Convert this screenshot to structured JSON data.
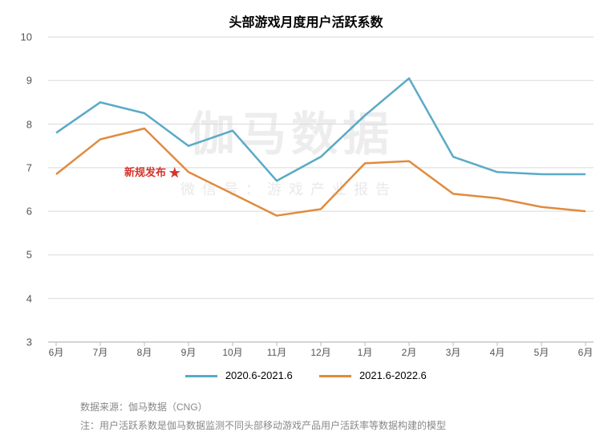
{
  "title": "头部游戏月度用户活跃系数",
  "chart": {
    "type": "line",
    "background_color": "#ffffff",
    "grid_color": "#d9d9d9",
    "axis_color": "#d9d9d9",
    "yaxis": {
      "min": 3,
      "max": 10,
      "ticks": [
        3,
        4,
        5,
        6,
        7,
        8,
        9,
        10
      ],
      "label_fontsize": 13,
      "label_color": "#555555"
    },
    "xaxis": {
      "categories": [
        "6月",
        "7月",
        "8月",
        "9月",
        "10月",
        "11月",
        "12月",
        "1月",
        "2月",
        "3月",
        "4月",
        "5月",
        "6月"
      ],
      "label_fontsize": 12,
      "label_color": "#555555"
    },
    "series": [
      {
        "name": "2020.6-2021.6",
        "color": "#5aaac7",
        "line_width": 2.5,
        "values": [
          7.8,
          8.5,
          8.25,
          7.5,
          7.85,
          6.7,
          7.25,
          8.2,
          9.05,
          7.25,
          6.9,
          6.85,
          6.85
        ]
      },
      {
        "name": "2021.6-2022.6",
        "color": "#e08b3e",
        "line_width": 2.5,
        "values": [
          6.85,
          7.65,
          7.9,
          6.9,
          6.4,
          5.9,
          6.05,
          7.1,
          7.15,
          6.4,
          6.3,
          6.1,
          6.0
        ]
      }
    ],
    "annotation": {
      "text": "新规发布",
      "star": "★",
      "at_category_index": 3,
      "y_value": 6.9,
      "color": "#d6332a",
      "fontsize": 13
    },
    "watermark_big": "伽马数据",
    "watermark_small": "微信号：游戏产业报告"
  },
  "legend": {
    "items": [
      {
        "label": "2020.6-2021.6",
        "color": "#5aaac7"
      },
      {
        "label": "2021.6-2022.6",
        "color": "#e08b3e"
      }
    ]
  },
  "footnotes": {
    "line1": "数据来源：伽马数据（CNG）",
    "line2": "注：用户活跃系数是伽马数据监测不同头部移动游戏产品用户活跃率等数据构建的模型"
  }
}
